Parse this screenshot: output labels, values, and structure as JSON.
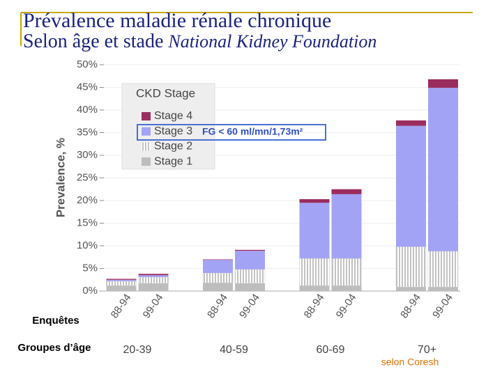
{
  "chart_data": {
    "type": "stacked-bar",
    "title": "Prévalence maladie rénale chronique",
    "subtitle": "Selon âge et stade",
    "subtitle_source": "National Kidney Foundation",
    "y_label": "Prevalence, %",
    "legend_title": "CKD Stage",
    "annotation": "FG < 60 ml/mn/1,73m²",
    "row_label_surveys": "Enquêtes",
    "row_label_groups": "Groupes d’âge",
    "source": "selon Coresh",
    "categories": [
      "88-94",
      "99-04",
      "88-94",
      "99-04",
      "88-94",
      "99-04",
      "88-94",
      "99-04"
    ],
    "groups": [
      "20-39",
      "40-59",
      "60-69",
      "70+"
    ],
    "series": [
      {
        "name": "Stage 1",
        "color": "#bdbdbd",
        "values": [
          1.2,
          1.7,
          1.8,
          1.7,
          1.2,
          1.2,
          0.9,
          0.9
        ]
      },
      {
        "name": "Stage 2",
        "color": "#a8a8a8",
        "pattern": "vertical-lines",
        "values": [
          1.0,
          1.4,
          2.2,
          3.1,
          6.0,
          6.0,
          8.9,
          7.9
        ]
      },
      {
        "name": "Stage 3",
        "color": "#a3a3f5",
        "values": [
          0.3,
          0.4,
          2.9,
          4.1,
          12.3,
          14.2,
          26.7,
          36.1
        ]
      },
      {
        "name": "Stage 4",
        "color": "#9b2d5e",
        "values": [
          0.2,
          0.3,
          0.1,
          0.2,
          0.8,
          1.1,
          1.2,
          1.9
        ]
      }
    ],
    "ylim": [
      0,
      50
    ],
    "yticks": [
      {
        "value": 0,
        "label": "0%"
      },
      {
        "value": 5,
        "label": "5%"
      },
      {
        "value": 10,
        "label": "10%"
      },
      {
        "value": 15,
        "label": "15%"
      },
      {
        "value": 20,
        "label": "20%"
      },
      {
        "value": 25,
        "label": "25%"
      },
      {
        "value": 30,
        "label": "30%"
      },
      {
        "value": 35,
        "label": "35%"
      },
      {
        "value": 40,
        "label": "40%"
      },
      {
        "value": 45,
        "label": "45%"
      },
      {
        "value": 50,
        "label": "50%"
      }
    ],
    "grid": true
  }
}
